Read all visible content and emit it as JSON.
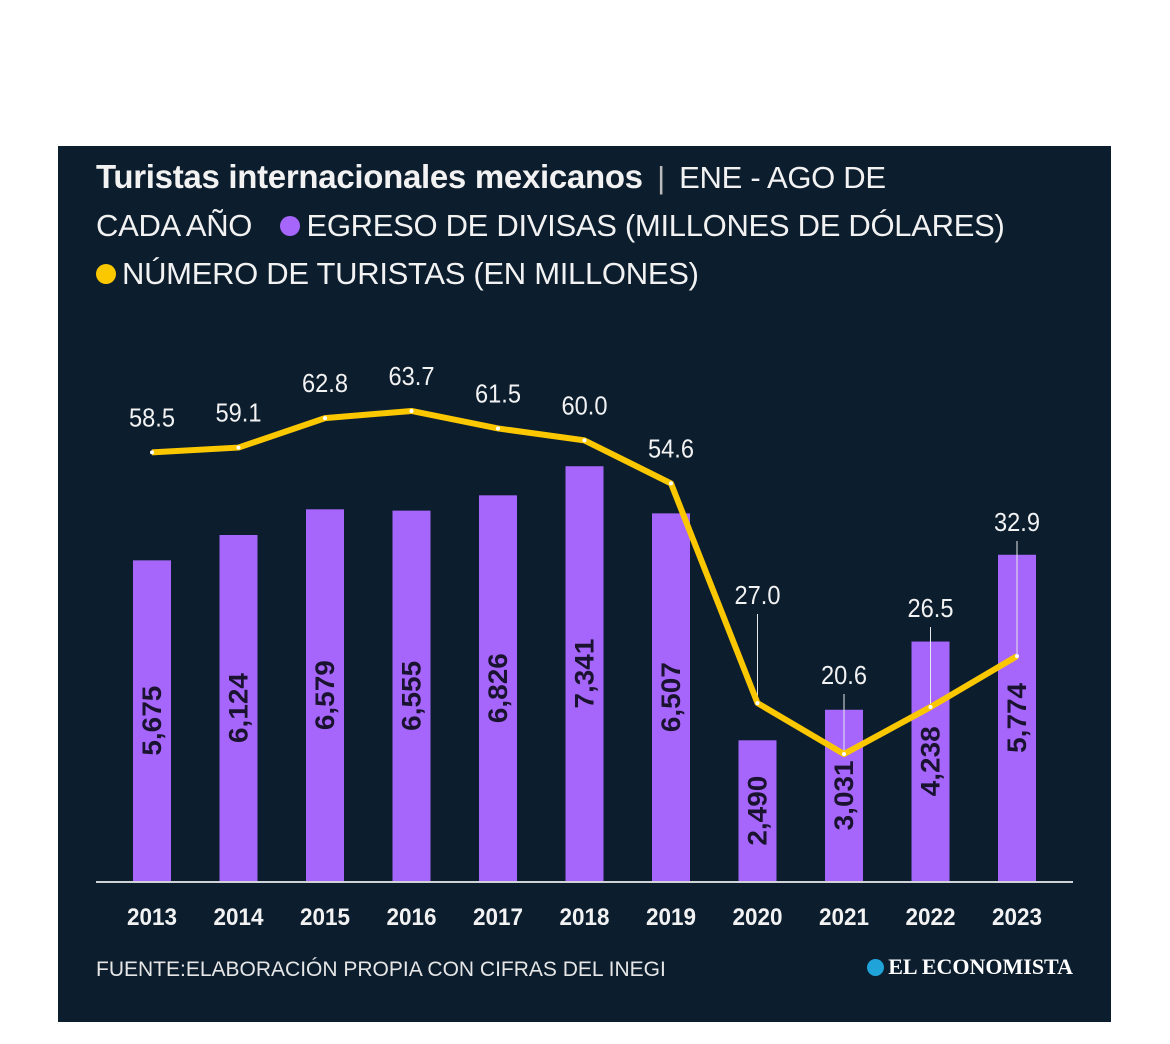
{
  "header": {
    "title": "Turistas internacionales mexicanos",
    "separator": "|",
    "subtitle_part1": "ENE - AGO DE",
    "subtitle_part2": "CADA AÑO",
    "legend_bars": "EGRESO DE DIVISAS (MILLONES DE DÓLARES)",
    "legend_line": "NÚMERO DE TURISTAS (EN MILLONES)"
  },
  "footer": {
    "source": "FUENTE:ELABORACIÓN PROPIA CON CIFRAS DEL INEGI",
    "logo": "EL ECONOMISTA"
  },
  "colors": {
    "background": "#0c1d2e",
    "bars": "#a666fb",
    "line": "#fbc800",
    "text": "#f2f2f2"
  },
  "chart_data": {
    "type": "bar+line",
    "categories": [
      "2013",
      "2014",
      "2015",
      "2016",
      "2017",
      "2018",
      "2019",
      "2020",
      "2021",
      "2022",
      "2023"
    ],
    "series": [
      {
        "name": "EGRESO DE DIVISAS (MILLONES DE DÓLARES)",
        "type": "bar",
        "values": [
          5675,
          6124,
          6579,
          6555,
          6826,
          7341,
          6507,
          2490,
          3031,
          4238,
          5774
        ],
        "labels": [
          "5,675",
          "6,124",
          "6,579",
          "6,555",
          "6,826",
          "7,341",
          "6,507",
          "2,490",
          "3,031",
          "4,238",
          "5,774"
        ]
      },
      {
        "name": "NÚMERO DE TURISTAS (EN MILLONES)",
        "type": "line",
        "values": [
          58.5,
          59.1,
          62.8,
          63.7,
          61.5,
          60.0,
          54.6,
          27.0,
          20.6,
          26.5,
          32.9
        ],
        "labels": [
          "58.5",
          "59.1",
          "62.8",
          "63.7",
          "61.5",
          "60.0",
          "54.6",
          "27.0",
          "20.6",
          "26.5",
          "32.9"
        ]
      }
    ],
    "grid": false,
    "legend": "top"
  }
}
